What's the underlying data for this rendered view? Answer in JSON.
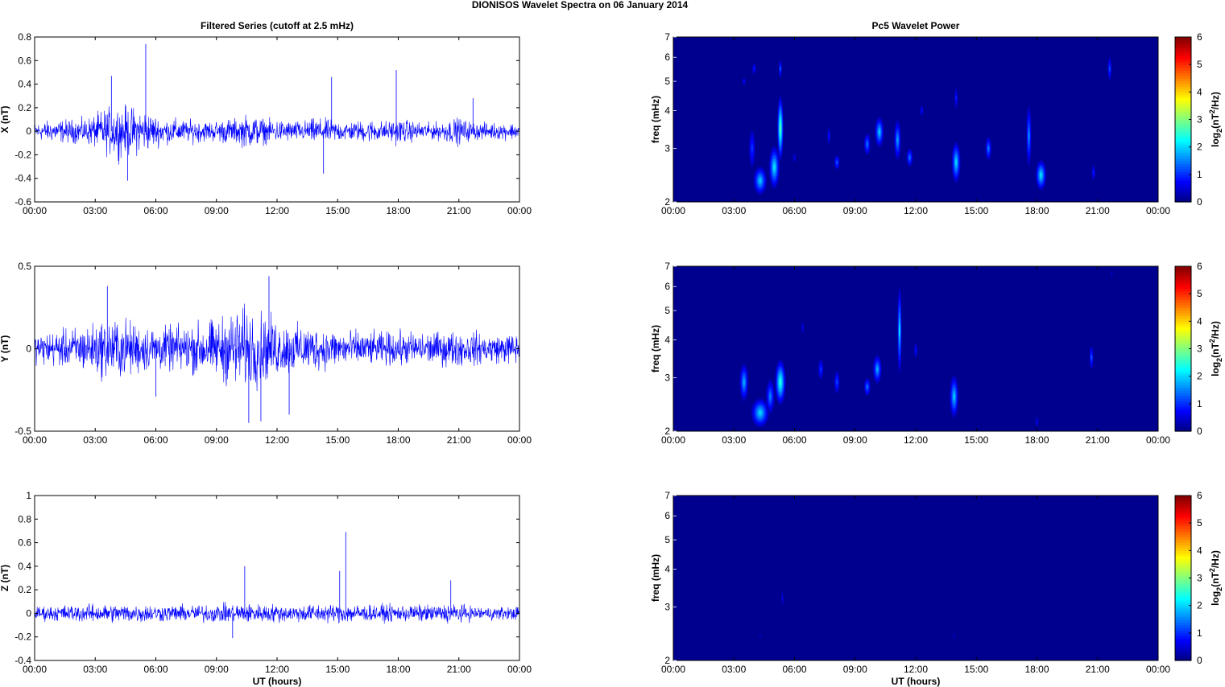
{
  "figure_title": "DIONISOS Wavelet Spectra on 06 January   2014",
  "left_title": "Filtered Series (cutoff at 2.5 mHz)",
  "right_title": "Pc5 Wavelet Power",
  "xlabel": "UT (hours)",
  "freq_label": "freq (mHz)",
  "colorbar_label": "log2(nT2/Hz)",
  "colors": {
    "series": "#0000ff",
    "background": "#00008f",
    "axis": "#000000"
  },
  "chart_data": [
    {
      "type": "line",
      "title": "Filtered Series (cutoff at 2.5 mHz)",
      "ylabel": "X (nT)",
      "xlabel": "",
      "xlim": [
        0,
        24
      ],
      "ylim": [
        -0.6,
        0.8
      ],
      "x_ticks": [
        "00:00",
        "03:00",
        "06:00",
        "09:00",
        "12:00",
        "15:00",
        "18:00",
        "21:00",
        "00:00"
      ],
      "y_ticks": [
        "0.8",
        "0.6",
        "0.4",
        "0.2",
        "0",
        "-0.2",
        "-0.4",
        "-0.6"
      ],
      "y_tick_values": [
        0.8,
        0.6,
        0.4,
        0.2,
        0,
        -0.2,
        -0.4,
        -0.6
      ],
      "series": [
        {
          "x": [
            0,
            0.5,
            1,
            1.5,
            2,
            2.5,
            3,
            3.5,
            4,
            4.5,
            5,
            5.5,
            6,
            6.5,
            7,
            7.5,
            8,
            8.5,
            9,
            9.5,
            10,
            10.5,
            11,
            11.5,
            12,
            12.5,
            13,
            13.5,
            14,
            14.5,
            15,
            15.5,
            16,
            16.5,
            17,
            17.5,
            18,
            18.5,
            19,
            19.5,
            20,
            20.5,
            21,
            21.5,
            22,
            22.5,
            23,
            23.5,
            24
          ],
          "amplitude": [
            0.1,
            0.12,
            0.13,
            0.14,
            0.14,
            0.15,
            0.2,
            0.27,
            0.3,
            0.3,
            0.28,
            0.25,
            0.18,
            0.15,
            0.15,
            0.13,
            0.14,
            0.12,
            0.13,
            0.15,
            0.15,
            0.2,
            0.18,
            0.14,
            0.14,
            0.13,
            0.12,
            0.13,
            0.16,
            0.14,
            0.13,
            0.12,
            0.12,
            0.14,
            0.13,
            0.12,
            0.16,
            0.13,
            0.11,
            0.1,
            0.11,
            0.14,
            0.16,
            0.12,
            0.1,
            0.1,
            0.1,
            0.1,
            0.1
          ],
          "spikes": [
            {
              "x": 5.5,
              "y": 0.74
            },
            {
              "x": 4.6,
              "y": -0.42
            },
            {
              "x": 17.9,
              "y": 0.52
            },
            {
              "x": 14.3,
              "y": -0.36
            },
            {
              "x": 21.7,
              "y": 0.28
            },
            {
              "x": 3.8,
              "y": 0.47
            },
            {
              "x": 14.7,
              "y": 0.46
            }
          ]
        }
      ]
    },
    {
      "type": "line",
      "title": "",
      "ylabel": "Y (nT)",
      "xlabel": "",
      "xlim": [
        0,
        24
      ],
      "ylim": [
        -0.5,
        0.5
      ],
      "x_ticks": [
        "00:00",
        "03:00",
        "06:00",
        "09:00",
        "12:00",
        "15:00",
        "18:00",
        "21:00",
        "00:00"
      ],
      "y_ticks": [
        "0.5",
        "0",
        "-0.5"
      ],
      "y_tick_values": [
        0.5,
        0,
        -0.5
      ],
      "series": [
        {
          "x": [
            0,
            0.5,
            1,
            1.5,
            2,
            2.5,
            3,
            3.5,
            4,
            4.5,
            5,
            5.5,
            6,
            6.5,
            7,
            7.5,
            8,
            8.5,
            9,
            9.5,
            10,
            10.5,
            11,
            11.5,
            12,
            12.5,
            13,
            13.5,
            14,
            14.5,
            15,
            15.5,
            16,
            16.5,
            17,
            17.5,
            18,
            18.5,
            19,
            19.5,
            20,
            20.5,
            21,
            21.5,
            22,
            22.5,
            23,
            23.5,
            24
          ],
          "amplitude": [
            0.12,
            0.14,
            0.15,
            0.16,
            0.18,
            0.2,
            0.22,
            0.25,
            0.26,
            0.25,
            0.22,
            0.2,
            0.19,
            0.18,
            0.2,
            0.2,
            0.22,
            0.24,
            0.24,
            0.3,
            0.34,
            0.35,
            0.32,
            0.28,
            0.24,
            0.22,
            0.2,
            0.2,
            0.18,
            0.17,
            0.16,
            0.16,
            0.15,
            0.14,
            0.14,
            0.14,
            0.15,
            0.14,
            0.14,
            0.14,
            0.14,
            0.15,
            0.15,
            0.14,
            0.14,
            0.13,
            0.12,
            0.13,
            0.14
          ],
          "spikes": [
            {
              "x": 11.6,
              "y": 0.44
            },
            {
              "x": 10.6,
              "y": -0.45
            },
            {
              "x": 11.2,
              "y": -0.44
            },
            {
              "x": 3.6,
              "y": 0.38
            },
            {
              "x": 6.0,
              "y": -0.29
            },
            {
              "x": 12.6,
              "y": -0.4
            }
          ]
        }
      ]
    },
    {
      "type": "line",
      "title": "",
      "ylabel": "Z (nT)",
      "xlabel": "UT (hours)",
      "xlim": [
        0,
        24
      ],
      "ylim": [
        -0.4,
        1.0
      ],
      "x_ticks": [
        "00:00",
        "03:00",
        "06:00",
        "09:00",
        "12:00",
        "15:00",
        "18:00",
        "21:00",
        "00:00"
      ],
      "y_ticks": [
        "1",
        "0.8",
        "0.6",
        "0.4",
        "0.2",
        "0",
        "-0.2",
        "-0.4"
      ],
      "y_tick_values": [
        1,
        0.8,
        0.6,
        0.4,
        0.2,
        0,
        -0.2,
        -0.4
      ],
      "series": [
        {
          "x": [
            0,
            0.5,
            1,
            1.5,
            2,
            2.5,
            3,
            3.5,
            4,
            4.5,
            5,
            5.5,
            6,
            6.5,
            7,
            7.5,
            8,
            8.5,
            9,
            9.5,
            10,
            10.5,
            11,
            11.5,
            12,
            12.5,
            13,
            13.5,
            14,
            14.5,
            15,
            15.5,
            16,
            16.5,
            17,
            17.5,
            18,
            18.5,
            19,
            19.5,
            20,
            20.5,
            21,
            21.5,
            22,
            22.5,
            23,
            23.5,
            24
          ],
          "amplitude": [
            0.08,
            0.09,
            0.09,
            0.1,
            0.1,
            0.1,
            0.11,
            0.11,
            0.11,
            0.11,
            0.11,
            0.11,
            0.1,
            0.1,
            0.1,
            0.1,
            0.1,
            0.11,
            0.11,
            0.11,
            0.12,
            0.12,
            0.11,
            0.11,
            0.11,
            0.1,
            0.1,
            0.11,
            0.11,
            0.11,
            0.11,
            0.12,
            0.11,
            0.1,
            0.1,
            0.1,
            0.1,
            0.1,
            0.1,
            0.1,
            0.1,
            0.12,
            0.11,
            0.09,
            0.08,
            0.08,
            0.08,
            0.08,
            0.08
          ],
          "spikes": [
            {
              "x": 15.4,
              "y": 0.69
            },
            {
              "x": 10.4,
              "y": 0.4
            },
            {
              "x": 15.1,
              "y": 0.36
            },
            {
              "x": 20.6,
              "y": 0.28
            },
            {
              "x": 9.8,
              "y": -0.21
            }
          ]
        }
      ]
    },
    {
      "type": "heatmap",
      "title": "Pc5 Wavelet Power",
      "ylabel": "freq (mHz)",
      "xlabel": "",
      "xlim": [
        0,
        24
      ],
      "ylim": [
        2,
        7
      ],
      "yscale": "log",
      "x_ticks": [
        "00:00",
        "03:00",
        "06:00",
        "09:00",
        "12:00",
        "15:00",
        "18:00",
        "21:00",
        "00:00"
      ],
      "y_ticks": [
        "7",
        "6",
        "5",
        "4",
        "3",
        "2"
      ],
      "y_tick_values": [
        7,
        6,
        5,
        4,
        3,
        2
      ],
      "colorbar": {
        "label": "log2(nT2/Hz)",
        "range": [
          0,
          6
        ],
        "ticks": [
          "6",
          "5",
          "4",
          "3",
          "2",
          "1",
          "0"
        ]
      },
      "blobs": [
        {
          "t": 3.9,
          "f": 3.0,
          "dt": 0.08,
          "df": 0.35,
          "p": 1.2
        },
        {
          "t": 4.3,
          "f": 2.35,
          "dt": 0.15,
          "df": 0.18,
          "p": 2.2
        },
        {
          "t": 4.0,
          "f": 5.5,
          "dt": 0.05,
          "df": 0.2,
          "p": 1.0
        },
        {
          "t": 3.5,
          "f": 5.0,
          "dt": 0.05,
          "df": 0.15,
          "p": 0.8
        },
        {
          "t": 5.0,
          "f": 2.6,
          "dt": 0.12,
          "df": 0.3,
          "p": 2.4
        },
        {
          "t": 5.3,
          "f": 3.5,
          "dt": 0.07,
          "df": 0.6,
          "p": 3.1
        },
        {
          "t": 5.3,
          "f": 5.5,
          "dt": 0.04,
          "df": 0.3,
          "p": 1.4
        },
        {
          "t": 6.0,
          "f": 2.8,
          "dt": 0.05,
          "df": 0.1,
          "p": 0.7
        },
        {
          "t": 7.7,
          "f": 3.3,
          "dt": 0.05,
          "df": 0.2,
          "p": 0.9
        },
        {
          "t": 8.1,
          "f": 2.7,
          "dt": 0.07,
          "df": 0.12,
          "p": 1.4
        },
        {
          "t": 9.6,
          "f": 3.1,
          "dt": 0.08,
          "df": 0.2,
          "p": 1.6
        },
        {
          "t": 10.2,
          "f": 3.4,
          "dt": 0.1,
          "df": 0.28,
          "p": 2.2
        },
        {
          "t": 11.1,
          "f": 3.2,
          "dt": 0.08,
          "df": 0.35,
          "p": 1.9
        },
        {
          "t": 11.7,
          "f": 2.8,
          "dt": 0.08,
          "df": 0.15,
          "p": 1.6
        },
        {
          "t": 12.3,
          "f": 4.0,
          "dt": 0.05,
          "df": 0.15,
          "p": 0.9
        },
        {
          "t": 14.0,
          "f": 2.7,
          "dt": 0.1,
          "df": 0.3,
          "p": 2.3
        },
        {
          "t": 14.0,
          "f": 4.4,
          "dt": 0.04,
          "df": 0.3,
          "p": 1.0
        },
        {
          "t": 15.6,
          "f": 3.0,
          "dt": 0.07,
          "df": 0.2,
          "p": 1.7
        },
        {
          "t": 17.6,
          "f": 3.3,
          "dt": 0.06,
          "df": 0.55,
          "p": 1.8
        },
        {
          "t": 18.2,
          "f": 2.45,
          "dt": 0.12,
          "df": 0.2,
          "p": 2.4
        },
        {
          "t": 20.8,
          "f": 2.5,
          "dt": 0.05,
          "df": 0.12,
          "p": 1.0
        },
        {
          "t": 21.6,
          "f": 5.5,
          "dt": 0.05,
          "df": 0.4,
          "p": 1.3
        }
      ]
    },
    {
      "type": "heatmap",
      "title": "",
      "ylabel": "freq (mHz)",
      "xlabel": "",
      "xlim": [
        0,
        24
      ],
      "ylim": [
        2,
        7
      ],
      "yscale": "log",
      "x_ticks": [
        "00:00",
        "03:00",
        "06:00",
        "09:00",
        "12:00",
        "15:00",
        "18:00",
        "21:00",
        "00:00"
      ],
      "y_ticks": [
        "7",
        "6",
        "5",
        "4",
        "3",
        "2"
      ],
      "y_tick_values": [
        7,
        6,
        5,
        4,
        3,
        2
      ],
      "colorbar": {
        "label": "log2(nT2/Hz)",
        "range": [
          0,
          6
        ],
        "ticks": [
          "6",
          "5",
          "4",
          "3",
          "2",
          "1",
          "0"
        ]
      },
      "blobs": [
        {
          "t": 3.5,
          "f": 2.9,
          "dt": 0.1,
          "df": 0.3,
          "p": 2.0
        },
        {
          "t": 4.3,
          "f": 2.3,
          "dt": 0.2,
          "df": 0.18,
          "p": 2.3
        },
        {
          "t": 4.8,
          "f": 2.6,
          "dt": 0.1,
          "df": 0.25,
          "p": 1.7
        },
        {
          "t": 5.3,
          "f": 2.9,
          "dt": 0.12,
          "df": 0.35,
          "p": 2.8
        },
        {
          "t": 6.4,
          "f": 4.4,
          "dt": 0.04,
          "df": 0.2,
          "p": 0.7
        },
        {
          "t": 7.3,
          "f": 3.2,
          "dt": 0.07,
          "df": 0.2,
          "p": 1.2
        },
        {
          "t": 8.1,
          "f": 2.9,
          "dt": 0.07,
          "df": 0.2,
          "p": 1.3
        },
        {
          "t": 9.6,
          "f": 2.8,
          "dt": 0.08,
          "df": 0.15,
          "p": 1.6
        },
        {
          "t": 10.1,
          "f": 3.2,
          "dt": 0.1,
          "df": 0.25,
          "p": 2.0
        },
        {
          "t": 11.2,
          "f": 4.3,
          "dt": 0.05,
          "df": 1.0,
          "p": 2.3
        },
        {
          "t": 12.0,
          "f": 3.7,
          "dt": 0.05,
          "df": 0.2,
          "p": 0.9
        },
        {
          "t": 13.9,
          "f": 2.6,
          "dt": 0.1,
          "df": 0.3,
          "p": 2.2
        },
        {
          "t": 18.0,
          "f": 2.15,
          "dt": 0.05,
          "df": 0.08,
          "p": 0.7
        },
        {
          "t": 20.7,
          "f": 3.5,
          "dt": 0.05,
          "df": 0.25,
          "p": 1.4
        },
        {
          "t": 21.7,
          "f": 6.6,
          "dt": 0.03,
          "df": 0.2,
          "p": 0.5
        }
      ]
    },
    {
      "type": "heatmap",
      "title": "",
      "ylabel": "freq (mHz)",
      "xlabel": "UT (hours)",
      "xlim": [
        0,
        24
      ],
      "ylim": [
        2,
        7
      ],
      "yscale": "log",
      "x_ticks": [
        "00:00",
        "03:00",
        "06:00",
        "09:00",
        "12:00",
        "15:00",
        "18:00",
        "21:00",
        "00:00"
      ],
      "y_ticks": [
        "7",
        "6",
        "5",
        "4",
        "3",
        "2"
      ],
      "y_tick_values": [
        7,
        6,
        5,
        4,
        3,
        2
      ],
      "colorbar": {
        "label": "log2(nT2/Hz)",
        "range": [
          0,
          6
        ],
        "ticks": [
          "6",
          "5",
          "4",
          "3",
          "2",
          "1",
          "0"
        ]
      },
      "blobs": [
        {
          "t": 5.4,
          "f": 3.2,
          "dt": 0.04,
          "df": 0.2,
          "p": 0.6
        },
        {
          "t": 4.3,
          "f": 2.4,
          "dt": 0.04,
          "df": 0.08,
          "p": 0.4
        },
        {
          "t": 13.9,
          "f": 2.4,
          "dt": 0.04,
          "df": 0.1,
          "p": 0.4
        }
      ]
    }
  ]
}
